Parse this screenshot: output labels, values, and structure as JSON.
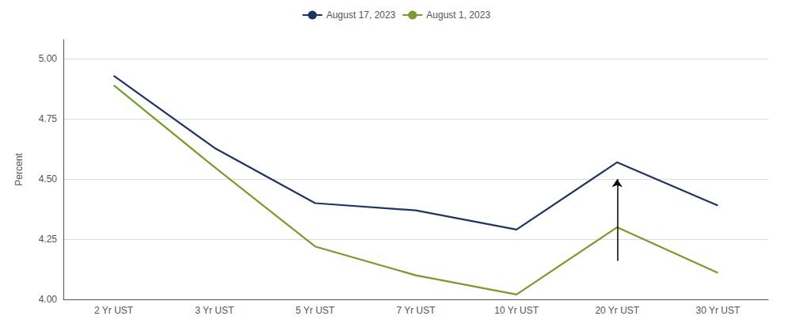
{
  "chart_data": {
    "type": "line",
    "categories": [
      "2 Yr UST",
      "3 Yr UST",
      "5 Yr UST",
      "7 Yr UST",
      "10 Yr UST",
      "20 Yr UST",
      "30 Yr UST"
    ],
    "series": [
      {
        "name": "August 17, 2023",
        "color": "#1f3464",
        "values": [
          4.93,
          4.63,
          4.4,
          4.37,
          4.29,
          4.57,
          4.39
        ]
      },
      {
        "name": "August 1, 2023",
        "color": "#7a9a2e",
        "values": [
          4.89,
          4.55,
          4.22,
          4.1,
          4.02,
          4.3,
          4.11
        ]
      }
    ],
    "ylabel": "Percent",
    "ylim": [
      4.0,
      5.08
    ],
    "yticks": [
      {
        "value": 4.0,
        "label": "4.00"
      },
      4.25,
      {
        "value": 4.5,
        "label": "4.50"
      },
      4.75,
      {
        "value": 5.0,
        "label": "5.00"
      }
    ],
    "annotations": [
      {
        "x": "20 Yr UST",
        "y": 4.5,
        "from_y": 4.16
      }
    ],
    "grid": true,
    "legend": "top"
  }
}
